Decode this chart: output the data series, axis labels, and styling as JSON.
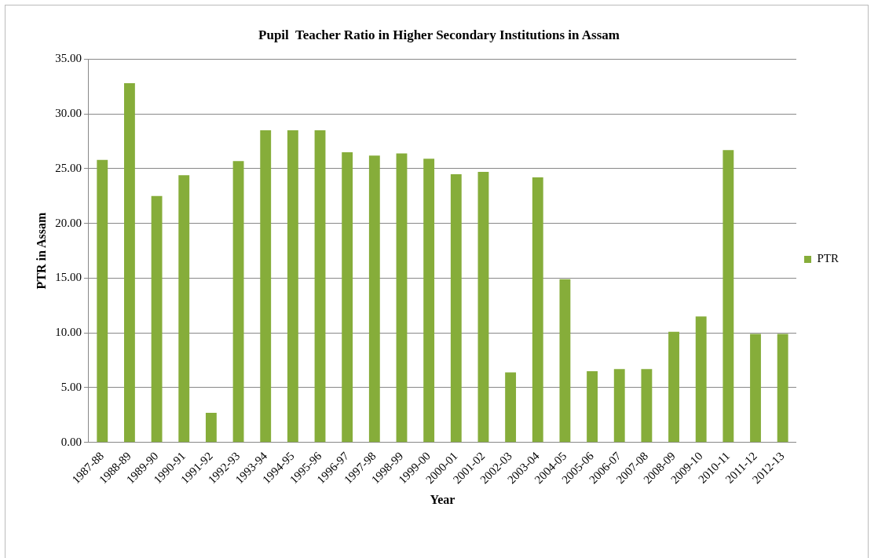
{
  "chart_data": {
    "type": "bar",
    "title": "Pupil  Teacher Ratio in Higher Secondary Institutions in Assam",
    "xlabel": "Year",
    "ylabel": "PTR in Assam",
    "categories": [
      "1987-88",
      "1988-89",
      "1989-90",
      "1990-91",
      "1991-92",
      "1992-93",
      "1993-94",
      "1994-95",
      "1995-96",
      "1996-97",
      "1997-98",
      "1998-99",
      "1999-00",
      "2000-01",
      "2001-02",
      "2002-03",
      "2003-04",
      "2004-05",
      "2005-06",
      "2006-07",
      "2007-08",
      "2008-09",
      "2009-10",
      "2010-11",
      "2011-12",
      "2012-13"
    ],
    "series": [
      {
        "name": "PTR",
        "color": "#86ad3a",
        "values": [
          25.8,
          32.8,
          22.5,
          24.4,
          2.7,
          25.7,
          28.5,
          28.5,
          28.5,
          26.5,
          26.2,
          26.4,
          25.9,
          24.5,
          24.7,
          6.4,
          24.2,
          14.9,
          6.5,
          6.7,
          6.7,
          10.1,
          11.5,
          26.7,
          9.9,
          9.9
        ]
      }
    ],
    "ylim": [
      0,
      35
    ],
    "yticks": [
      {
        "value": 0,
        "label": "0.00"
      },
      {
        "value": 5,
        "label": "5.00"
      },
      {
        "value": 10,
        "label": "10.00"
      },
      {
        "value": 15,
        "label": "15.00"
      },
      {
        "value": 20,
        "label": "20.00"
      },
      {
        "value": 25,
        "label": "25.00"
      },
      {
        "value": 30,
        "label": "30.00"
      },
      {
        "value": 35,
        "label": "35.00"
      }
    ],
    "grid": "y",
    "legend": "right"
  }
}
